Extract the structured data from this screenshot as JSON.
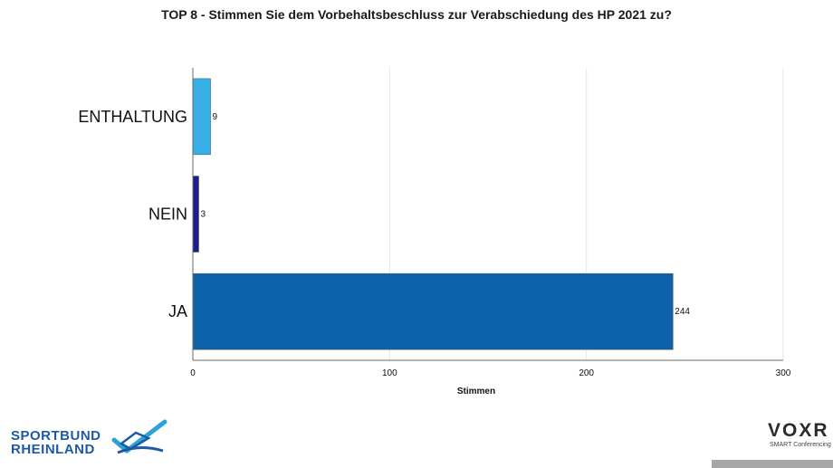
{
  "chart_data": {
    "type": "bar",
    "orientation": "horizontal",
    "title": "TOP 8 - Stimmen Sie dem Vorbehaltsbeschluss zur Verabschiedung des HP 2021 zu?",
    "categories": [
      "ENTHALTUNG",
      "NEIN",
      "JA"
    ],
    "values": [
      9,
      3,
      244
    ],
    "colors": [
      "#38aee6",
      "#1c1e8c",
      "#0b62a8"
    ],
    "xlabel": "Stimmen",
    "ylabel": "",
    "xlim": [
      0,
      300
    ],
    "xticks": [
      "0",
      "100",
      "200",
      "300"
    ],
    "grid": true,
    "data_labels": [
      "9",
      "3",
      "244"
    ]
  },
  "logos": {
    "left_line1": "SPORTBUND",
    "left_line2": "RHEINLAND",
    "right_main": "VOXR",
    "right_sub": "SMART Conferencing"
  },
  "colors": {
    "grid": "#e6e6e6",
    "axis": "#6a6a6a",
    "brand_blue": "#1d5aa6",
    "footer_bar": "#a6a6a6"
  }
}
